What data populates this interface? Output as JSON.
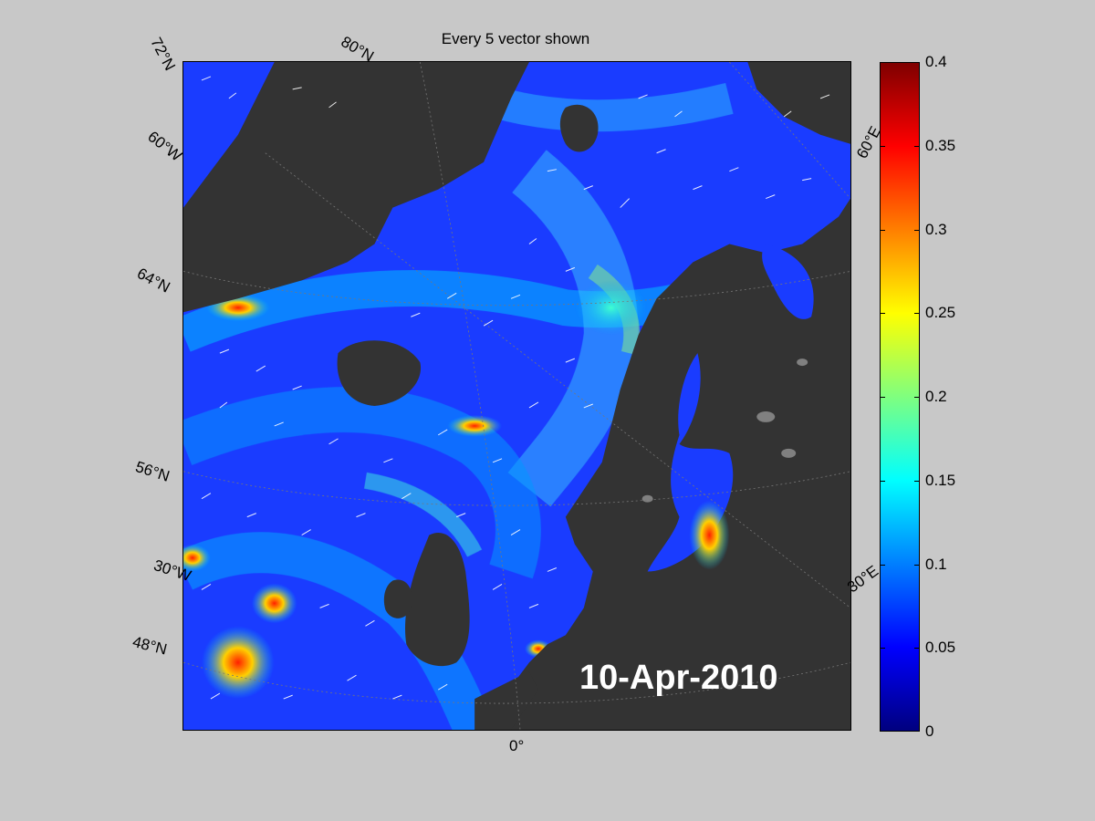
{
  "title": "Every 5 vector shown",
  "date": "10-Apr-2010",
  "latitude_labels": [
    "72°N",
    "64°N",
    "56°N",
    "48°N"
  ],
  "longitude_labels": {
    "n80": "80°N",
    "w60": "60°W",
    "w30": "30°W",
    "zero": "0°",
    "e60": "60°E",
    "e30": "30°E"
  },
  "colorbar": {
    "ticks": [
      "0",
      "0.05",
      "0.1",
      "0.15",
      "0.2",
      "0.25",
      "0.3",
      "0.35",
      "0.4"
    ],
    "min": 0,
    "max": 0.4,
    "colormap": "jet"
  },
  "colors": {
    "background": "#c8c8c8",
    "land": "#333333",
    "ocean_base": "#1a3cff",
    "vectors": "#ffffff"
  }
}
